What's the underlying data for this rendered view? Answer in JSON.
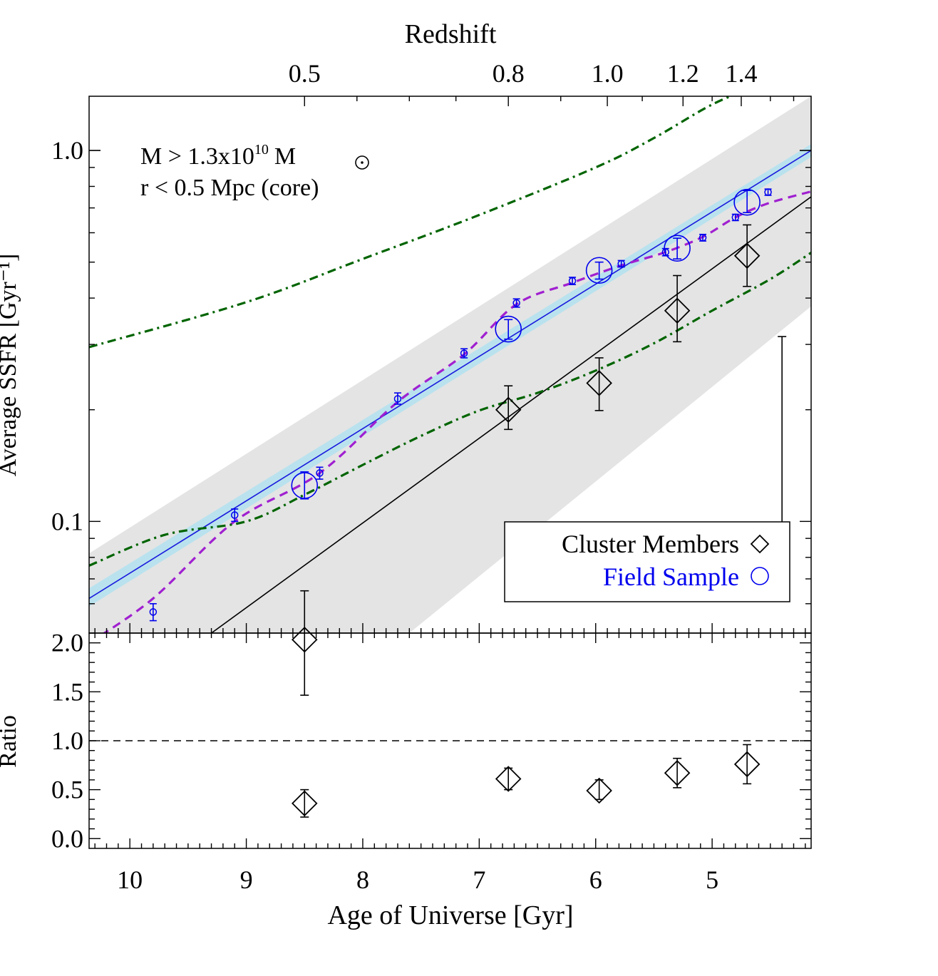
{
  "chart_data": [
    {
      "panel": "top",
      "type": "scatter",
      "ylabel": "Average SSFR [Gyr⁻¹]",
      "yscale": "log",
      "ylim": [
        0.05,
        1.4
      ],
      "xlim": [
        10.35,
        4.15
      ],
      "y_ticks": [
        {
          "value": 0.1,
          "label": "0.1"
        },
        {
          "value": 1.0,
          "label": "1.0"
        }
      ],
      "top_axis": {
        "title": "Redshift",
        "ticks": [
          {
            "age": 8.5,
            "label": "0.5"
          },
          {
            "age": 6.75,
            "label": "0.8"
          },
          {
            "age": 5.9,
            "label": "1.0"
          },
          {
            "age": 5.25,
            "label": "1.2"
          },
          {
            "age": 4.75,
            "label": "1.4"
          }
        ]
      },
      "annotation": {
        "mass_text": "M > 1.3x10",
        "mass_exp": "10",
        "mass_unit": "M",
        "radius_text": "r < 0.5 Mpc (core)"
      },
      "legend": {
        "position": "bottom-right",
        "cluster_label": "Cluster Members",
        "field_label": "Field Sample"
      },
      "series": [
        {
          "name": "Cluster Members",
          "marker": "diamond",
          "color": "#000000",
          "points": [
            {
              "x": 8.5,
              "y": 0.048,
              "lo": 0.034,
              "hi": 0.065
            },
            {
              "x": 6.75,
              "y": 0.2,
              "lo": 0.177,
              "hi": 0.232
            },
            {
              "x": 5.97,
              "y": 0.236,
              "lo": 0.199,
              "hi": 0.276
            },
            {
              "x": 5.3,
              "y": 0.37,
              "lo": 0.305,
              "hi": 0.46
            },
            {
              "x": 4.7,
              "y": 0.52,
              "lo": 0.43,
              "hi": 0.63
            }
          ]
        },
        {
          "name": "Field Sample",
          "marker": "circle",
          "color": "#0000ee",
          "points": [
            {
              "x": 8.5,
              "y": 0.125,
              "lo": 0.115,
              "hi": 0.136
            },
            {
              "x": 6.75,
              "y": 0.33,
              "lo": 0.31,
              "hi": 0.35
            },
            {
              "x": 5.97,
              "y": 0.475,
              "lo": 0.45,
              "hi": 0.5
            },
            {
              "x": 5.3,
              "y": 0.545,
              "lo": 0.51,
              "hi": 0.58
            },
            {
              "x": 4.7,
              "y": 0.725,
              "lo": 0.68,
              "hi": 0.78
            }
          ]
        },
        {
          "name": "Field (fine bins)",
          "marker": "small-circle",
          "color": "#0000ee",
          "points": [
            {
              "x": 9.8,
              "y": 0.057,
              "lo": 0.054,
              "hi": 0.06
            },
            {
              "x": 9.1,
              "y": 0.104,
              "lo": 0.1,
              "hi": 0.108
            },
            {
              "x": 8.37,
              "y": 0.135,
              "lo": 0.13,
              "hi": 0.14
            },
            {
              "x": 7.7,
              "y": 0.214,
              "lo": 0.207,
              "hi": 0.222
            },
            {
              "x": 7.13,
              "y": 0.284,
              "lo": 0.276,
              "hi": 0.292
            },
            {
              "x": 6.68,
              "y": 0.388,
              "lo": 0.378,
              "hi": 0.398
            },
            {
              "x": 6.2,
              "y": 0.445,
              "lo": 0.435,
              "hi": 0.455
            },
            {
              "x": 5.78,
              "y": 0.495,
              "lo": 0.485,
              "hi": 0.505
            },
            {
              "x": 5.4,
              "y": 0.532,
              "lo": 0.52,
              "hi": 0.544
            },
            {
              "x": 5.08,
              "y": 0.582,
              "lo": 0.57,
              "hi": 0.594
            },
            {
              "x": 4.8,
              "y": 0.66,
              "lo": 0.647,
              "hi": 0.673
            },
            {
              "x": 4.52,
              "y": 0.772,
              "lo": 0.757,
              "hi": 0.787
            }
          ]
        }
      ],
      "lines": [
        {
          "name": "field fit",
          "style": "solid",
          "color": "#1a1add",
          "x": [
            10.35,
            4.15
          ],
          "y": [
            0.062,
            1.0
          ]
        },
        {
          "name": "cluster fit",
          "style": "solid",
          "color": "#000000",
          "x": [
            9.5,
            4.15
          ],
          "y": [
            0.045,
            0.75
          ]
        },
        {
          "name": "model curve",
          "style": "dashed",
          "color": "#a020d0",
          "x": [
            10.35,
            9.8,
            9.1,
            8.37,
            7.7,
            7.13,
            6.68,
            6.2,
            5.78,
            5.4,
            5.08,
            4.8,
            4.52,
            4.15
          ],
          "y": [
            0.047,
            0.062,
            0.1,
            0.135,
            0.21,
            0.282,
            0.385,
            0.44,
            0.49,
            0.532,
            0.585,
            0.66,
            0.72,
            0.775
          ]
        },
        {
          "name": "upper envelope",
          "style": "dash-dot",
          "color": "#006400",
          "x": [
            10.35,
            9.0,
            8.0,
            7.0,
            6.0,
            5.5,
            5.0,
            4.6
          ],
          "y": [
            0.295,
            0.39,
            0.51,
            0.67,
            0.9,
            1.08,
            1.33,
            1.5
          ]
        },
        {
          "name": "lower envelope",
          "style": "dash-dot",
          "color": "#006400",
          "x": [
            10.35,
            9.7,
            9.0,
            8.5,
            8.0,
            7.5,
            7.0,
            6.5,
            6.0,
            5.5,
            5.0,
            4.5,
            4.15
          ],
          "y": [
            0.076,
            0.092,
            0.1,
            0.118,
            0.142,
            0.17,
            0.199,
            0.222,
            0.255,
            0.302,
            0.37,
            0.45,
            0.53
          ]
        }
      ],
      "bands": [
        {
          "name": "grey scatter band",
          "color": "#e4e4e4",
          "x_upper": [
            10.35,
            4.15
          ],
          "y_upper": [
            0.082,
            1.4
          ],
          "x_lower": [
            7.6,
            4.15
          ],
          "y_lower": [
            0.05,
            0.38
          ]
        },
        {
          "name": "field fit uncertainty",
          "color": "#b9e2ee",
          "x_upper": [
            10.35,
            4.15
          ],
          "y_upper": [
            0.066,
            1.04
          ],
          "x_lower": [
            10.35,
            4.15
          ],
          "y_lower": [
            0.059,
            0.96
          ]
        }
      ],
      "representative_error": {
        "x": 4.4,
        "lo": 0.089,
        "hi": 0.315
      }
    },
    {
      "panel": "bottom",
      "type": "scatter",
      "xlabel": "Age of Universe [Gyr]",
      "ylabel": "Ratio",
      "xlim": [
        10.35,
        4.15
      ],
      "ylim": [
        -0.1,
        2.1
      ],
      "x_ticks": [
        {
          "value": 10,
          "label": "10"
        },
        {
          "value": 9,
          "label": "9"
        },
        {
          "value": 8,
          "label": "8"
        },
        {
          "value": 7,
          "label": "7"
        },
        {
          "value": 6,
          "label": "6"
        },
        {
          "value": 5,
          "label": "5"
        }
      ],
      "y_ticks": [
        {
          "value": 0.0,
          "label": "0.0"
        },
        {
          "value": 0.5,
          "label": "0.5"
        },
        {
          "value": 1.0,
          "label": "1.0"
        },
        {
          "value": 1.5,
          "label": "1.5"
        },
        {
          "value": 2.0,
          "label": "2.0"
        }
      ],
      "reference_line": 1.0,
      "series": [
        {
          "name": "Cluster / Field ratio",
          "marker": "diamond",
          "color": "#000000",
          "points": [
            {
              "x": 8.5,
              "y": 0.36,
              "lo": 0.22,
              "hi": 0.5
            },
            {
              "x": 6.75,
              "y": 0.61,
              "lo": 0.5,
              "hi": 0.72
            },
            {
              "x": 5.97,
              "y": 0.49,
              "lo": 0.4,
              "hi": 0.6
            },
            {
              "x": 5.3,
              "y": 0.67,
              "lo": 0.52,
              "hi": 0.82
            },
            {
              "x": 4.7,
              "y": 0.76,
              "lo": 0.56,
              "hi": 0.96
            }
          ]
        }
      ]
    }
  ]
}
